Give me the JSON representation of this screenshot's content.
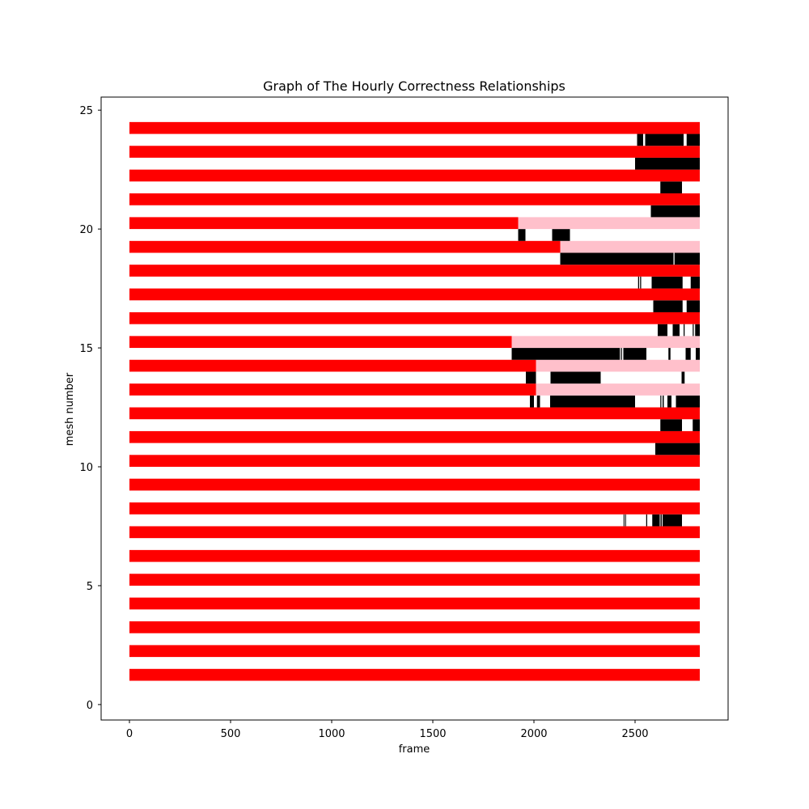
{
  "chart_data": {
    "type": "broken-barh",
    "title": "Graph of The Hourly Correctness Relationships",
    "xlabel": "frame",
    "ylabel": "mesh number",
    "xlim": [
      -140,
      2960
    ],
    "ylim": [
      -0.65,
      25.55
    ],
    "xticks": [
      0,
      500,
      1000,
      1500,
      2000,
      2500
    ],
    "yticks": [
      0,
      5,
      10,
      15,
      20,
      25
    ],
    "grid": false,
    "colors": {
      "red": "#ff0000",
      "pink": "#ffc0cb",
      "black": "#000000"
    },
    "series": [
      {
        "name": "mesh-1",
        "y": 1.25,
        "color": "red",
        "segments": [
          [
            0,
            2820
          ]
        ]
      },
      {
        "name": "mesh-2",
        "y": 2.25,
        "color": "red",
        "segments": [
          [
            0,
            2820
          ]
        ]
      },
      {
        "name": "mesh-3",
        "y": 3.25,
        "color": "red",
        "segments": [
          [
            0,
            2820
          ]
        ]
      },
      {
        "name": "mesh-4",
        "y": 4.25,
        "color": "red",
        "segments": [
          [
            0,
            2820
          ]
        ]
      },
      {
        "name": "mesh-5",
        "y": 5.25,
        "color": "red",
        "segments": [
          [
            0,
            2820
          ]
        ]
      },
      {
        "name": "mesh-6",
        "y": 6.25,
        "color": "red",
        "segments": [
          [
            0,
            2820
          ]
        ]
      },
      {
        "name": "mesh-7",
        "y": 7.25,
        "color": "red",
        "segments": [
          [
            0,
            2820
          ]
        ]
      },
      {
        "name": "mesh-7-errors",
        "y": 7.75,
        "color": "black",
        "segments": [
          [
            2443,
            2447
          ],
          [
            2451,
            2455
          ],
          [
            2555,
            2560
          ],
          [
            2585,
            2622
          ],
          [
            2626,
            2632
          ],
          [
            2636,
            2732
          ]
        ]
      },
      {
        "name": "mesh-8",
        "y": 8.25,
        "color": "red",
        "segments": [
          [
            0,
            2820
          ]
        ]
      },
      {
        "name": "mesh-9",
        "y": 9.25,
        "color": "red",
        "segments": [
          [
            0,
            2820
          ]
        ]
      },
      {
        "name": "mesh-10",
        "y": 10.25,
        "color": "red",
        "segments": [
          [
            0,
            2820
          ]
        ]
      },
      {
        "name": "mesh-10-errors",
        "y": 10.75,
        "color": "black",
        "segments": [
          [
            2600,
            2820
          ]
        ]
      },
      {
        "name": "mesh-11",
        "y": 11.25,
        "color": "red",
        "segments": [
          [
            0,
            2820
          ]
        ]
      },
      {
        "name": "mesh-11-errors",
        "y": 11.75,
        "color": "black",
        "segments": [
          [
            2625,
            2732
          ],
          [
            2785,
            2820
          ]
        ]
      },
      {
        "name": "mesh-12",
        "y": 12.25,
        "color": "red",
        "segments": [
          [
            0,
            2820
          ]
        ]
      },
      {
        "name": "mesh-12-errors",
        "y": 12.75,
        "color": "black",
        "segments": [
          [
            1980,
            2000
          ],
          [
            2015,
            2030
          ],
          [
            2080,
            2500
          ],
          [
            2625,
            2630
          ],
          [
            2636,
            2642
          ],
          [
            2660,
            2680
          ],
          [
            2702,
            2820
          ]
        ]
      },
      {
        "name": "mesh-13",
        "y": 13.25,
        "color": "red",
        "segments": [
          [
            0,
            2010
          ]
        ]
      },
      {
        "name": "mesh-13-pink",
        "y": 13.25,
        "color": "pink",
        "segments": [
          [
            2010,
            2820
          ]
        ]
      },
      {
        "name": "mesh-13-errors",
        "y": 13.75,
        "color": "black",
        "segments": [
          [
            1960,
            2010
          ],
          [
            2082,
            2330
          ],
          [
            2730,
            2745
          ]
        ]
      },
      {
        "name": "mesh-14",
        "y": 14.25,
        "color": "red",
        "segments": [
          [
            0,
            2010
          ]
        ]
      },
      {
        "name": "mesh-14-pink",
        "y": 14.25,
        "color": "pink",
        "segments": [
          [
            2010,
            2820
          ]
        ]
      },
      {
        "name": "mesh-14-errors",
        "y": 14.75,
        "color": "black",
        "segments": [
          [
            1890,
            2425
          ],
          [
            2430,
            2435
          ],
          [
            2442,
            2556
          ],
          [
            2665,
            2675
          ],
          [
            2750,
            2775
          ],
          [
            2800,
            2820
          ]
        ]
      },
      {
        "name": "mesh-15",
        "y": 15.25,
        "color": "red",
        "segments": [
          [
            0,
            1890
          ]
        ]
      },
      {
        "name": "mesh-15-pink",
        "y": 15.25,
        "color": "pink",
        "segments": [
          [
            1890,
            2820
          ]
        ]
      },
      {
        "name": "mesh-15-errors",
        "y": 15.75,
        "color": "black",
        "segments": [
          [
            2612,
            2660
          ],
          [
            2686,
            2720
          ],
          [
            2740,
            2745
          ],
          [
            2785,
            2790
          ],
          [
            2797,
            2820
          ]
        ]
      },
      {
        "name": "mesh-16",
        "y": 16.25,
        "color": "red",
        "segments": [
          [
            0,
            2820
          ]
        ]
      },
      {
        "name": "mesh-16-errors",
        "y": 16.75,
        "color": "black",
        "segments": [
          [
            2590,
            2735
          ],
          [
            2755,
            2820
          ]
        ]
      },
      {
        "name": "mesh-17",
        "y": 17.25,
        "color": "red",
        "segments": [
          [
            0,
            2820
          ]
        ]
      },
      {
        "name": "mesh-17-errors",
        "y": 17.75,
        "color": "black",
        "segments": [
          [
            2515,
            2520
          ],
          [
            2525,
            2530
          ],
          [
            2582,
            2735
          ],
          [
            2775,
            2820
          ]
        ]
      },
      {
        "name": "mesh-18",
        "y": 18.25,
        "color": "red",
        "segments": [
          [
            0,
            2820
          ]
        ]
      },
      {
        "name": "mesh-18-errors",
        "y": 18.75,
        "color": "black",
        "segments": [
          [
            2130,
            2690
          ],
          [
            2695,
            2820
          ]
        ]
      },
      {
        "name": "mesh-19",
        "y": 19.25,
        "color": "red",
        "segments": [
          [
            0,
            2130
          ]
        ]
      },
      {
        "name": "mesh-19-pink",
        "y": 19.25,
        "color": "pink",
        "segments": [
          [
            2130,
            2820
          ]
        ]
      },
      {
        "name": "mesh-19-errors",
        "y": 19.75,
        "color": "black",
        "segments": [
          [
            1922,
            1958
          ],
          [
            2090,
            2178
          ]
        ]
      },
      {
        "name": "mesh-20",
        "y": 20.25,
        "color": "red",
        "segments": [
          [
            0,
            1922
          ]
        ]
      },
      {
        "name": "mesh-20-pink",
        "y": 20.25,
        "color": "pink",
        "segments": [
          [
            1922,
            2820
          ]
        ]
      },
      {
        "name": "mesh-20-errors",
        "y": 20.75,
        "color": "black",
        "segments": [
          [
            2578,
            2820
          ]
        ]
      },
      {
        "name": "mesh-21",
        "y": 21.25,
        "color": "red",
        "segments": [
          [
            0,
            2820
          ]
        ]
      },
      {
        "name": "mesh-21-errors",
        "y": 21.75,
        "color": "black",
        "segments": [
          [
            2625,
            2732
          ]
        ]
      },
      {
        "name": "mesh-22",
        "y": 22.25,
        "color": "red",
        "segments": [
          [
            0,
            2820
          ]
        ]
      },
      {
        "name": "mesh-22-errors",
        "y": 22.75,
        "color": "black",
        "segments": [
          [
            2500,
            2820
          ]
        ]
      },
      {
        "name": "mesh-23",
        "y": 23.25,
        "color": "red",
        "segments": [
          [
            0,
            2820
          ]
        ]
      },
      {
        "name": "mesh-23-errors",
        "y": 23.75,
        "color": "black",
        "segments": [
          [
            2510,
            2540
          ],
          [
            2550,
            2740
          ],
          [
            2755,
            2820
          ]
        ]
      },
      {
        "name": "mesh-24",
        "y": 24.25,
        "color": "red",
        "segments": [
          [
            0,
            2820
          ]
        ]
      }
    ],
    "bar_height": 0.5
  }
}
